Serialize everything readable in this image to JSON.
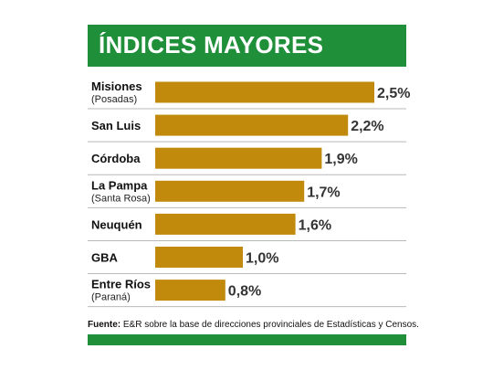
{
  "header": {
    "title": "ÍNDICES MAYORES"
  },
  "colors": {
    "accent": "#1f8f3a",
    "bar": "#c18a0d",
    "divider": "#b9b9b9"
  },
  "source": {
    "label": "Fuente:",
    "text": " E&R sobre la base de direcciones provinciales de Estadísticas y Censos."
  },
  "chart_data": {
    "type": "bar",
    "orientation": "horizontal",
    "title": "ÍNDICES MAYORES",
    "categories": [
      {
        "name": "Misiones",
        "sub": "(Posadas)"
      },
      {
        "name": "San Luis",
        "sub": ""
      },
      {
        "name": "Córdoba",
        "sub": ""
      },
      {
        "name": "La Pampa",
        "sub": "(Santa Rosa)"
      },
      {
        "name": "Neuquén",
        "sub": ""
      },
      {
        "name": "GBA",
        "sub": ""
      },
      {
        "name": "Entre Ríos",
        "sub": "(Paraná)"
      }
    ],
    "values": [
      2.5,
      2.2,
      1.9,
      1.7,
      1.6,
      1.0,
      0.8
    ],
    "value_labels": [
      "2,5%",
      "2,2%",
      "1,9%",
      "1,7%",
      "1,6%",
      "1,0%",
      "0,8%"
    ],
    "unit": "%",
    "xlim": [
      0,
      2.5
    ],
    "grid": false,
    "legend": "none"
  }
}
